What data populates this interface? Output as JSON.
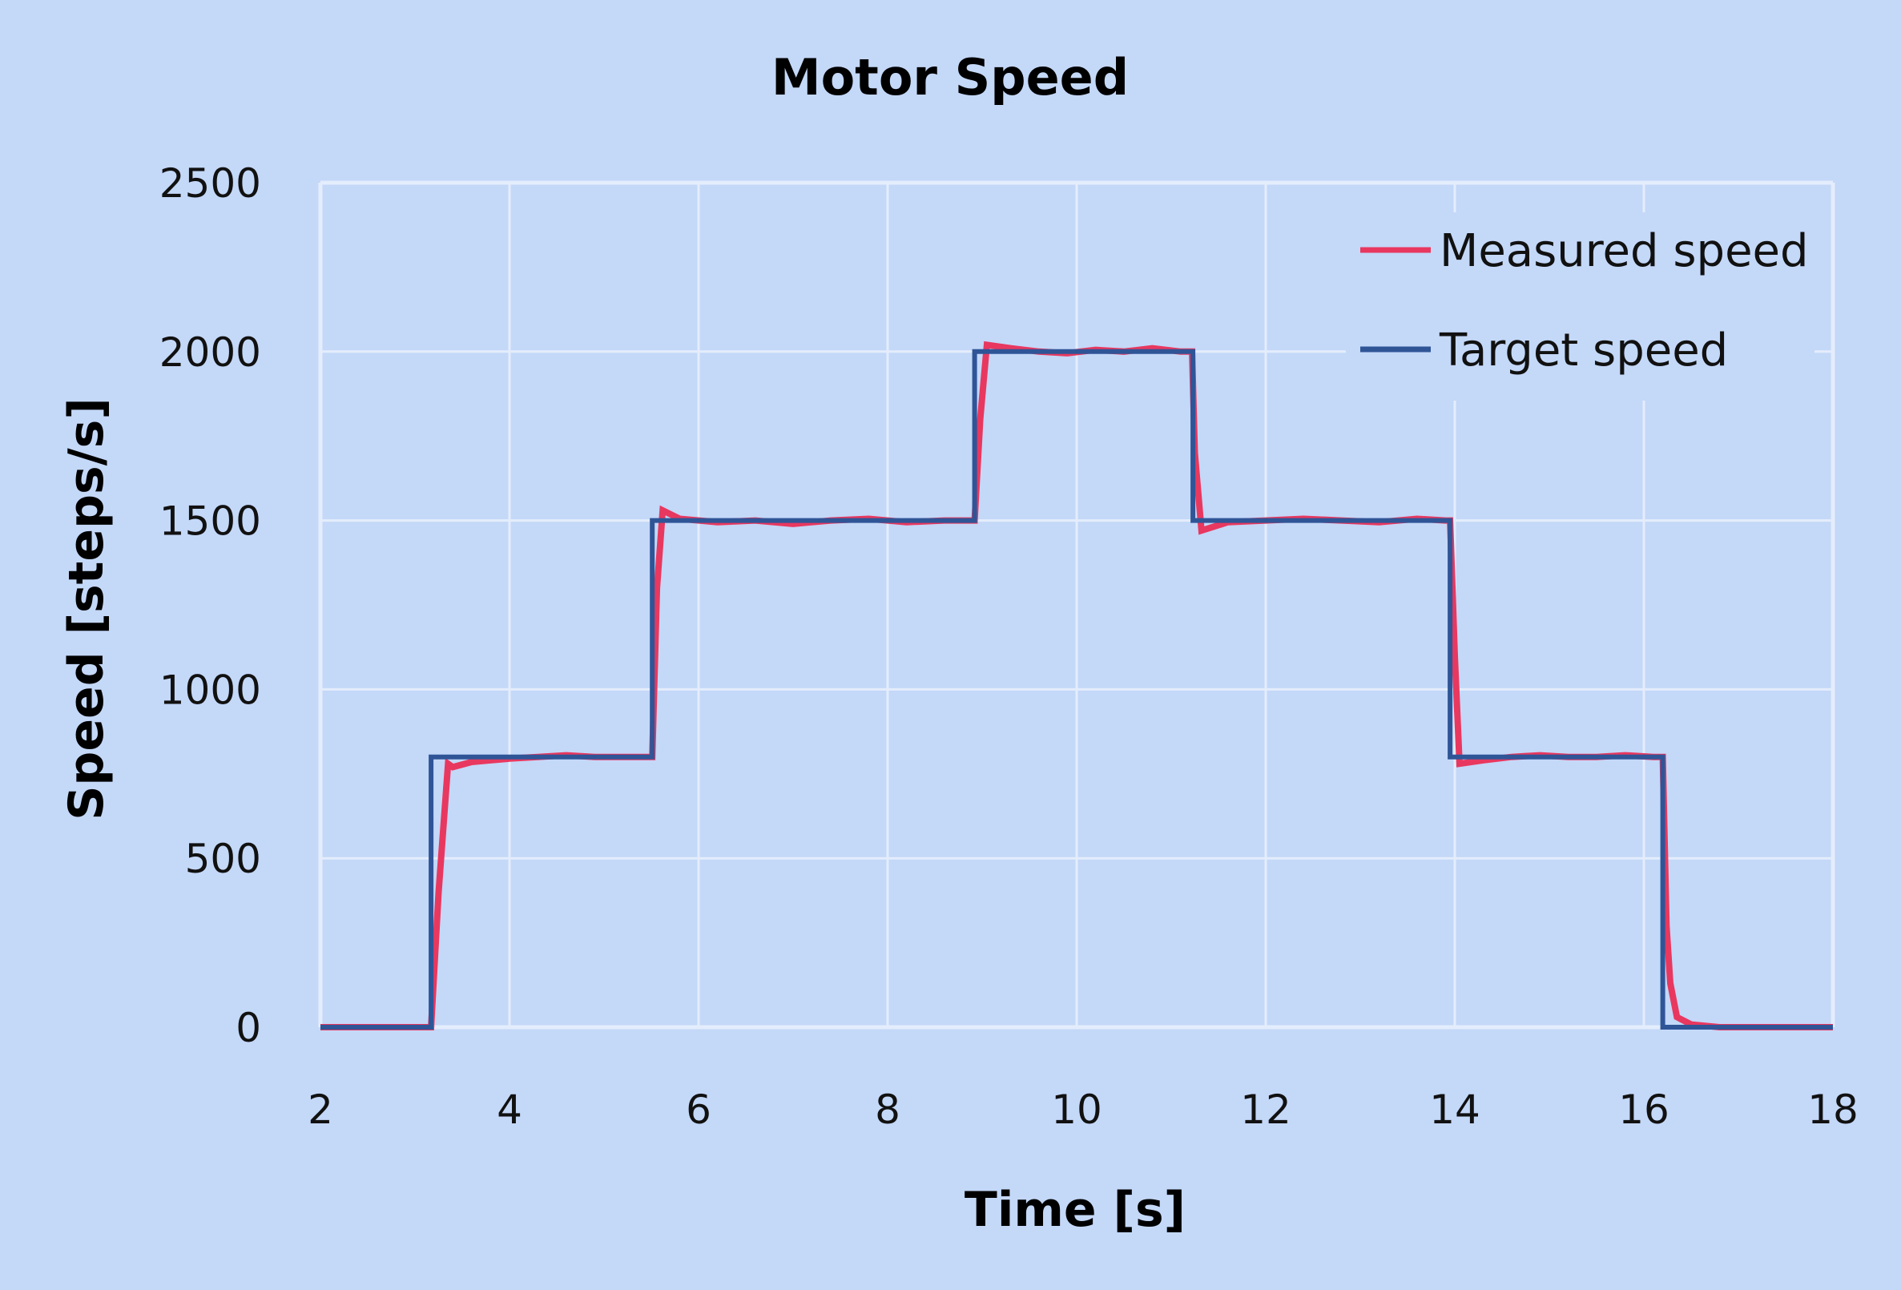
{
  "chart_data": {
    "type": "line",
    "title": "Motor Speed",
    "xlabel": "Time [s]",
    "ylabel": "Speed [steps/s]",
    "xlim": [
      2,
      18
    ],
    "ylim": [
      0,
      2500
    ],
    "xticks": [
      2,
      4,
      6,
      8,
      10,
      12,
      14,
      16,
      18
    ],
    "yticks": [
      0,
      500,
      1000,
      1500,
      2000,
      2500
    ],
    "grid": true,
    "legend_position": "top-right",
    "series": [
      {
        "name": "Measured speed",
        "color": "#e8385f",
        "x": [
          2,
          3.17,
          3.25,
          3.35,
          3.4,
          3.6,
          3.8,
          4.0,
          4.3,
          4.6,
          4.9,
          5.2,
          5.5,
          5.51,
          5.56,
          5.62,
          5.8,
          6.2,
          6.6,
          7.0,
          7.4,
          7.8,
          8.2,
          8.6,
          8.9,
          8.92,
          8.98,
          9.05,
          9.3,
          9.6,
          9.9,
          10.2,
          10.5,
          10.8,
          11.1,
          11.22,
          11.25,
          11.32,
          11.6,
          12.0,
          12.4,
          12.8,
          13.2,
          13.6,
          13.9,
          13.95,
          14.0,
          14.05,
          14.3,
          14.6,
          14.9,
          15.2,
          15.5,
          15.8,
          16.1,
          16.2,
          16.24,
          16.28,
          16.35,
          16.5,
          16.8,
          18
        ],
        "y": [
          0,
          0,
          400,
          780,
          770,
          785,
          790,
          795,
          800,
          805,
          800,
          800,
          800,
          800,
          1300,
          1530,
          1505,
          1495,
          1500,
          1490,
          1500,
          1505,
          1495,
          1500,
          1500,
          1500,
          1800,
          2020,
          2010,
          2000,
          1995,
          2005,
          2000,
          2010,
          2000,
          2000,
          1700,
          1470,
          1495,
          1500,
          1505,
          1500,
          1495,
          1505,
          1500,
          1500,
          1100,
          780,
          790,
          800,
          805,
          800,
          800,
          805,
          800,
          800,
          300,
          130,
          30,
          8,
          0,
          0
        ]
      },
      {
        "name": "Target speed",
        "color": "#2f5597",
        "x": [
          2,
          3.17,
          3.17,
          5.51,
          5.51,
          8.92,
          8.92,
          11.23,
          11.23,
          13.95,
          13.95,
          16.2,
          16.2,
          18
        ],
        "y": [
          0,
          0,
          800,
          800,
          1500,
          1500,
          2000,
          2000,
          1500,
          1500,
          800,
          800,
          0,
          0
        ]
      }
    ]
  }
}
